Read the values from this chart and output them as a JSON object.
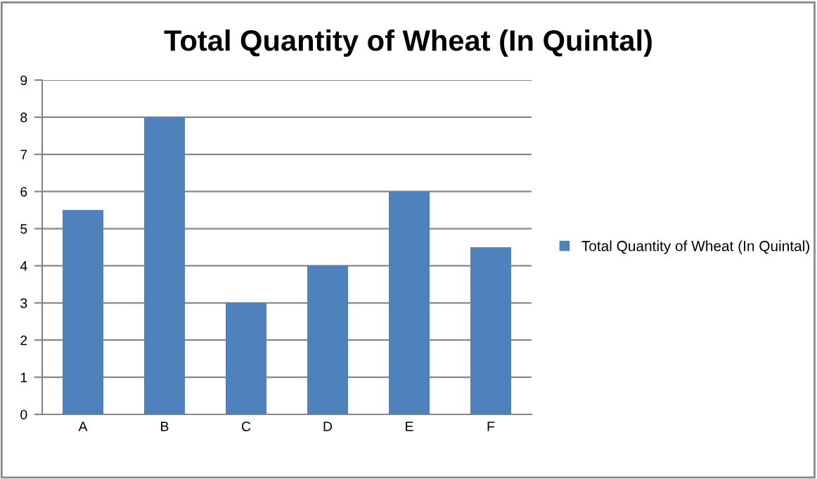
{
  "chart_data": {
    "type": "bar",
    "title": "Total Quantity of Wheat (In Quintal)",
    "categories": [
      "A",
      "B",
      "C",
      "D",
      "E",
      "F"
    ],
    "series": [
      {
        "name": "Total Quantity of Wheat (In Quintal)",
        "color": "#4f81bd",
        "values": [
          5.5,
          8,
          3,
          4,
          6,
          4.5
        ]
      }
    ],
    "ylim": [
      0,
      9
    ],
    "yticks": [
      0,
      1,
      2,
      3,
      4,
      5,
      6,
      7,
      8,
      9
    ],
    "grid": "y",
    "legend": "right"
  }
}
